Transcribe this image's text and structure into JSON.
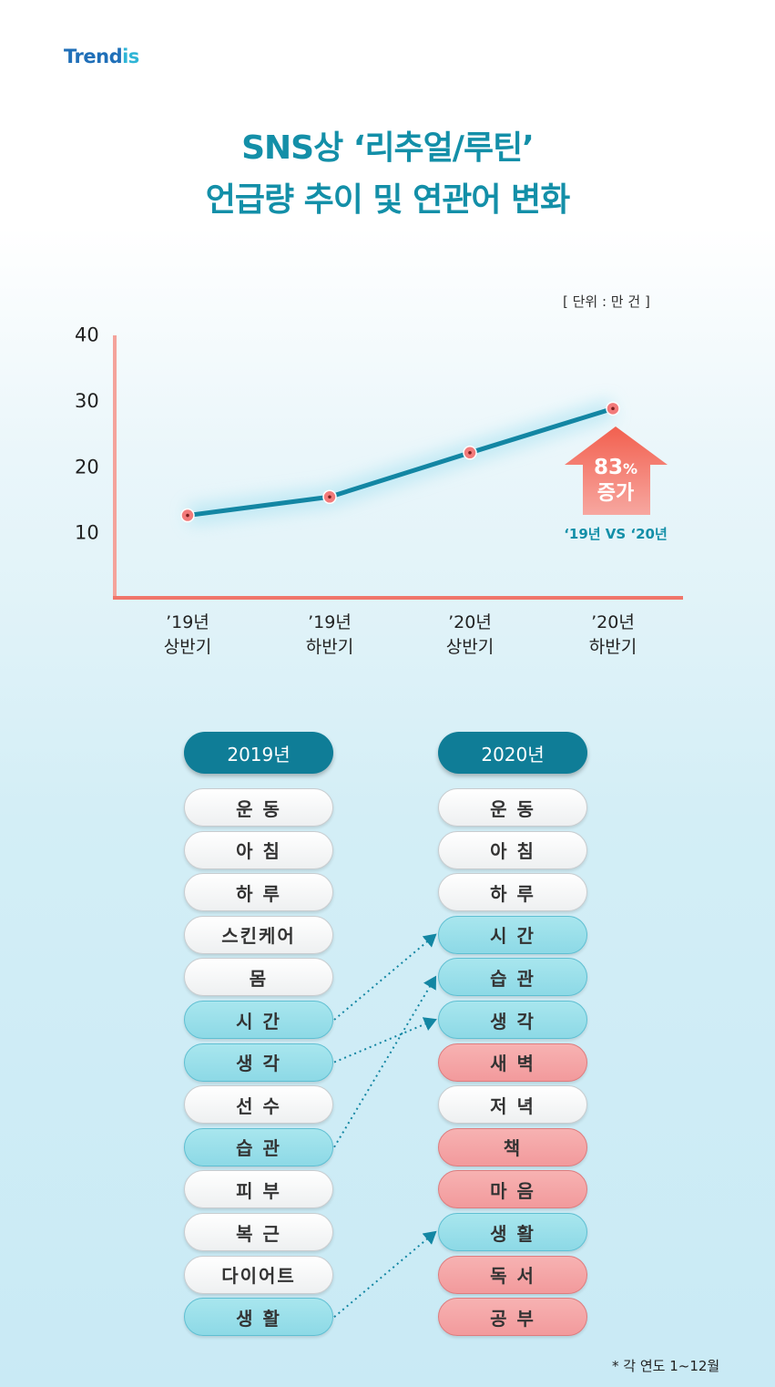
{
  "logo": {
    "text_main": "Trend",
    "text_accent": "is"
  },
  "title": {
    "line1": "SNS상 ‘리추얼/루틴’",
    "line2": "언급량 추이 및 연관어 변화"
  },
  "unit": "[ 단위 : 만 건 ]",
  "chart_data": {
    "type": "line",
    "categories": [
      [
        "’19년",
        "상반기"
      ],
      [
        "’19년",
        "하반기"
      ],
      [
        "’20년",
        "상반기"
      ],
      [
        "’20년",
        "하반기"
      ]
    ],
    "values": [
      12.5,
      15.3,
      22,
      28.7
    ],
    "yticks": [
      10,
      20,
      30,
      40
    ],
    "ylim": [
      0,
      40
    ],
    "annotation": {
      "percent": "83",
      "percent_unit": "%",
      "label": "증가",
      "compare": "‘19년 VS ‘20년"
    },
    "colors": {
      "line": "#1386a3",
      "marker": "#f27a7a",
      "axis": "#f0756a",
      "arrow": "#f26b5e"
    }
  },
  "keywords": {
    "col2019": {
      "header": "2019년",
      "items": [
        {
          "label": "운 동",
          "style": "white"
        },
        {
          "label": "아 침",
          "style": "white"
        },
        {
          "label": "하 루",
          "style": "white"
        },
        {
          "label": "스킨케어",
          "style": "white"
        },
        {
          "label": "몸",
          "style": "white"
        },
        {
          "label": "시 간",
          "style": "blue"
        },
        {
          "label": "생 각",
          "style": "blue"
        },
        {
          "label": "선 수",
          "style": "white"
        },
        {
          "label": "습 관",
          "style": "blue"
        },
        {
          "label": "피 부",
          "style": "white"
        },
        {
          "label": "복 근",
          "style": "white"
        },
        {
          "label": "다이어트",
          "style": "white"
        },
        {
          "label": "생 활",
          "style": "blue"
        }
      ]
    },
    "col2020": {
      "header": "2020년",
      "items": [
        {
          "label": "운 동",
          "style": "white"
        },
        {
          "label": "아 침",
          "style": "white"
        },
        {
          "label": "하 루",
          "style": "white"
        },
        {
          "label": "시 간",
          "style": "blue"
        },
        {
          "label": "습 관",
          "style": "blue"
        },
        {
          "label": "생 각",
          "style": "blue"
        },
        {
          "label": "새 벽",
          "style": "pink"
        },
        {
          "label": "저 녁",
          "style": "white"
        },
        {
          "label": "책",
          "style": "pink"
        },
        {
          "label": "마 음",
          "style": "pink"
        },
        {
          "label": "생 활",
          "style": "blue"
        },
        {
          "label": "독 서",
          "style": "pink"
        },
        {
          "label": "공 부",
          "style": "pink"
        }
      ]
    },
    "links": [
      [
        5,
        3
      ],
      [
        6,
        5
      ],
      [
        8,
        4
      ],
      [
        12,
        10
      ]
    ]
  },
  "footnote": "* 각 연도 1~12월"
}
